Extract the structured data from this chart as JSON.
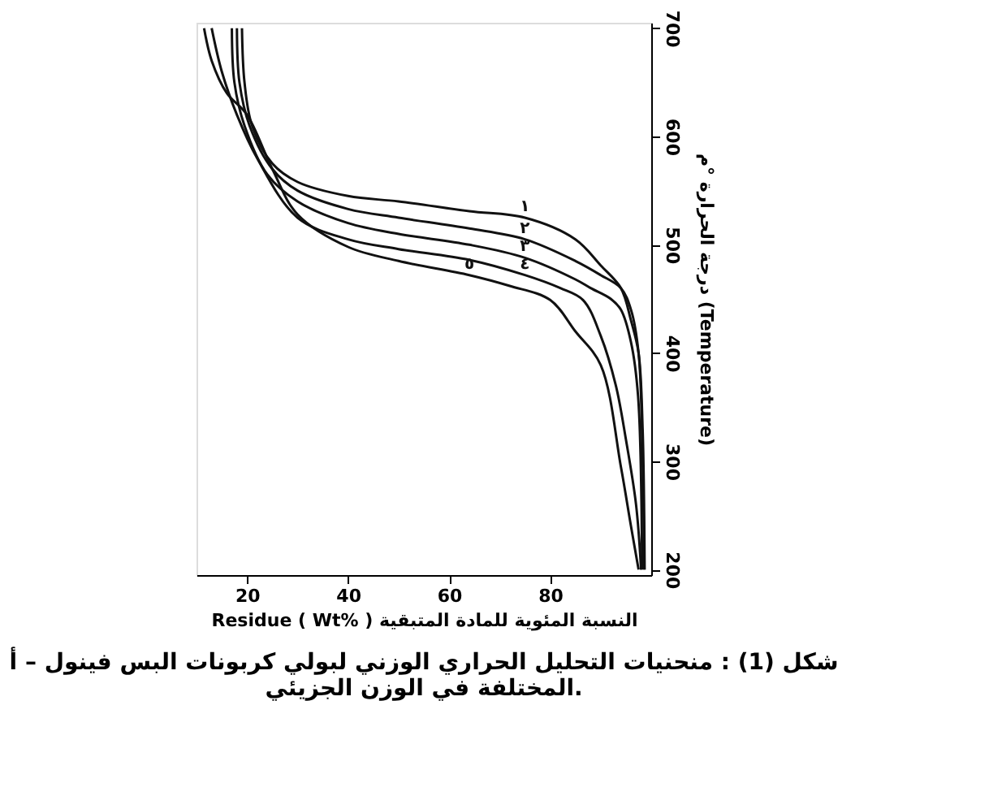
{
  "chart_data": {
    "type": "line",
    "xlabel": "Residue ( Wt% ) النسبة المئوية للمادة المتبقية",
    "ylabel": "درجة الحرارة °م (Temperature)",
    "annotations": [
      "شكل (1) : منحنيات التحليل الحراري الوزني لبولي كربونات البس فينول – أ",
      "المختلفة في الوزن الجزيئي."
    ],
    "xlim": [
      10,
      100
    ],
    "xticks": [
      20,
      40,
      60,
      80
    ],
    "ylim": [
      195,
      705
    ],
    "yticks": [
      200,
      300,
      400,
      500,
      600,
      700
    ],
    "grid": false,
    "legend": false,
    "marker": "none",
    "line_style": "solid",
    "series": [
      {
        "name": "١",
        "color": "#111111",
        "x": [
          19,
          19.5,
          21,
          25,
          30,
          40,
          50,
          64,
          75,
          85,
          90,
          94,
          96,
          97.5,
          98.3,
          98.7
        ],
        "values": [
          700,
          650,
          610,
          575,
          558,
          545,
          540,
          531,
          525,
          505,
          481,
          460,
          430,
          400,
          330,
          200
        ]
      },
      {
        "name": "٢",
        "color": "#111111",
        "x": [
          18,
          18.5,
          20.5,
          25,
          30,
          40,
          50,
          64,
          75,
          85,
          90,
          94,
          96,
          97.5,
          98.3,
          98.6
        ],
        "values": [
          700,
          650,
          610,
          570,
          550,
          533,
          525,
          515,
          505,
          485,
          472,
          460,
          440,
          400,
          300,
          200
        ]
      },
      {
        "name": "٣",
        "color": "#111111",
        "x": [
          17,
          17.5,
          19.5,
          24,
          30,
          40,
          50,
          64,
          75,
          85,
          88,
          92,
          94,
          96,
          97.4,
          98.2
        ],
        "values": [
          700,
          650,
          610,
          565,
          540,
          520,
          510,
          500,
          488,
          468,
          460,
          450,
          440,
          410,
          360,
          200
        ]
      },
      {
        "name": "٤",
        "color": "#111111",
        "x": [
          13,
          15,
          18,
          22,
          30,
          40,
          50,
          64,
          75,
          82,
          86.5,
          90,
          93,
          95,
          97,
          98
        ],
        "values": [
          700,
          660,
          620,
          580,
          525,
          505,
          496,
          486,
          472,
          460,
          449,
          416,
          370,
          320,
          260,
          200
        ]
      },
      {
        "name": "٥",
        "color": "#111111",
        "x": [
          11.5,
          13,
          16,
          20,
          25,
          30,
          40,
          50,
          64,
          72,
          80,
          85,
          90,
          94,
          96,
          97.5
        ],
        "values": [
          700,
          670,
          640,
          620,
          570,
          528,
          498,
          485,
          472,
          462,
          449,
          420,
          389,
          295,
          240,
          200
        ]
      }
    ]
  }
}
